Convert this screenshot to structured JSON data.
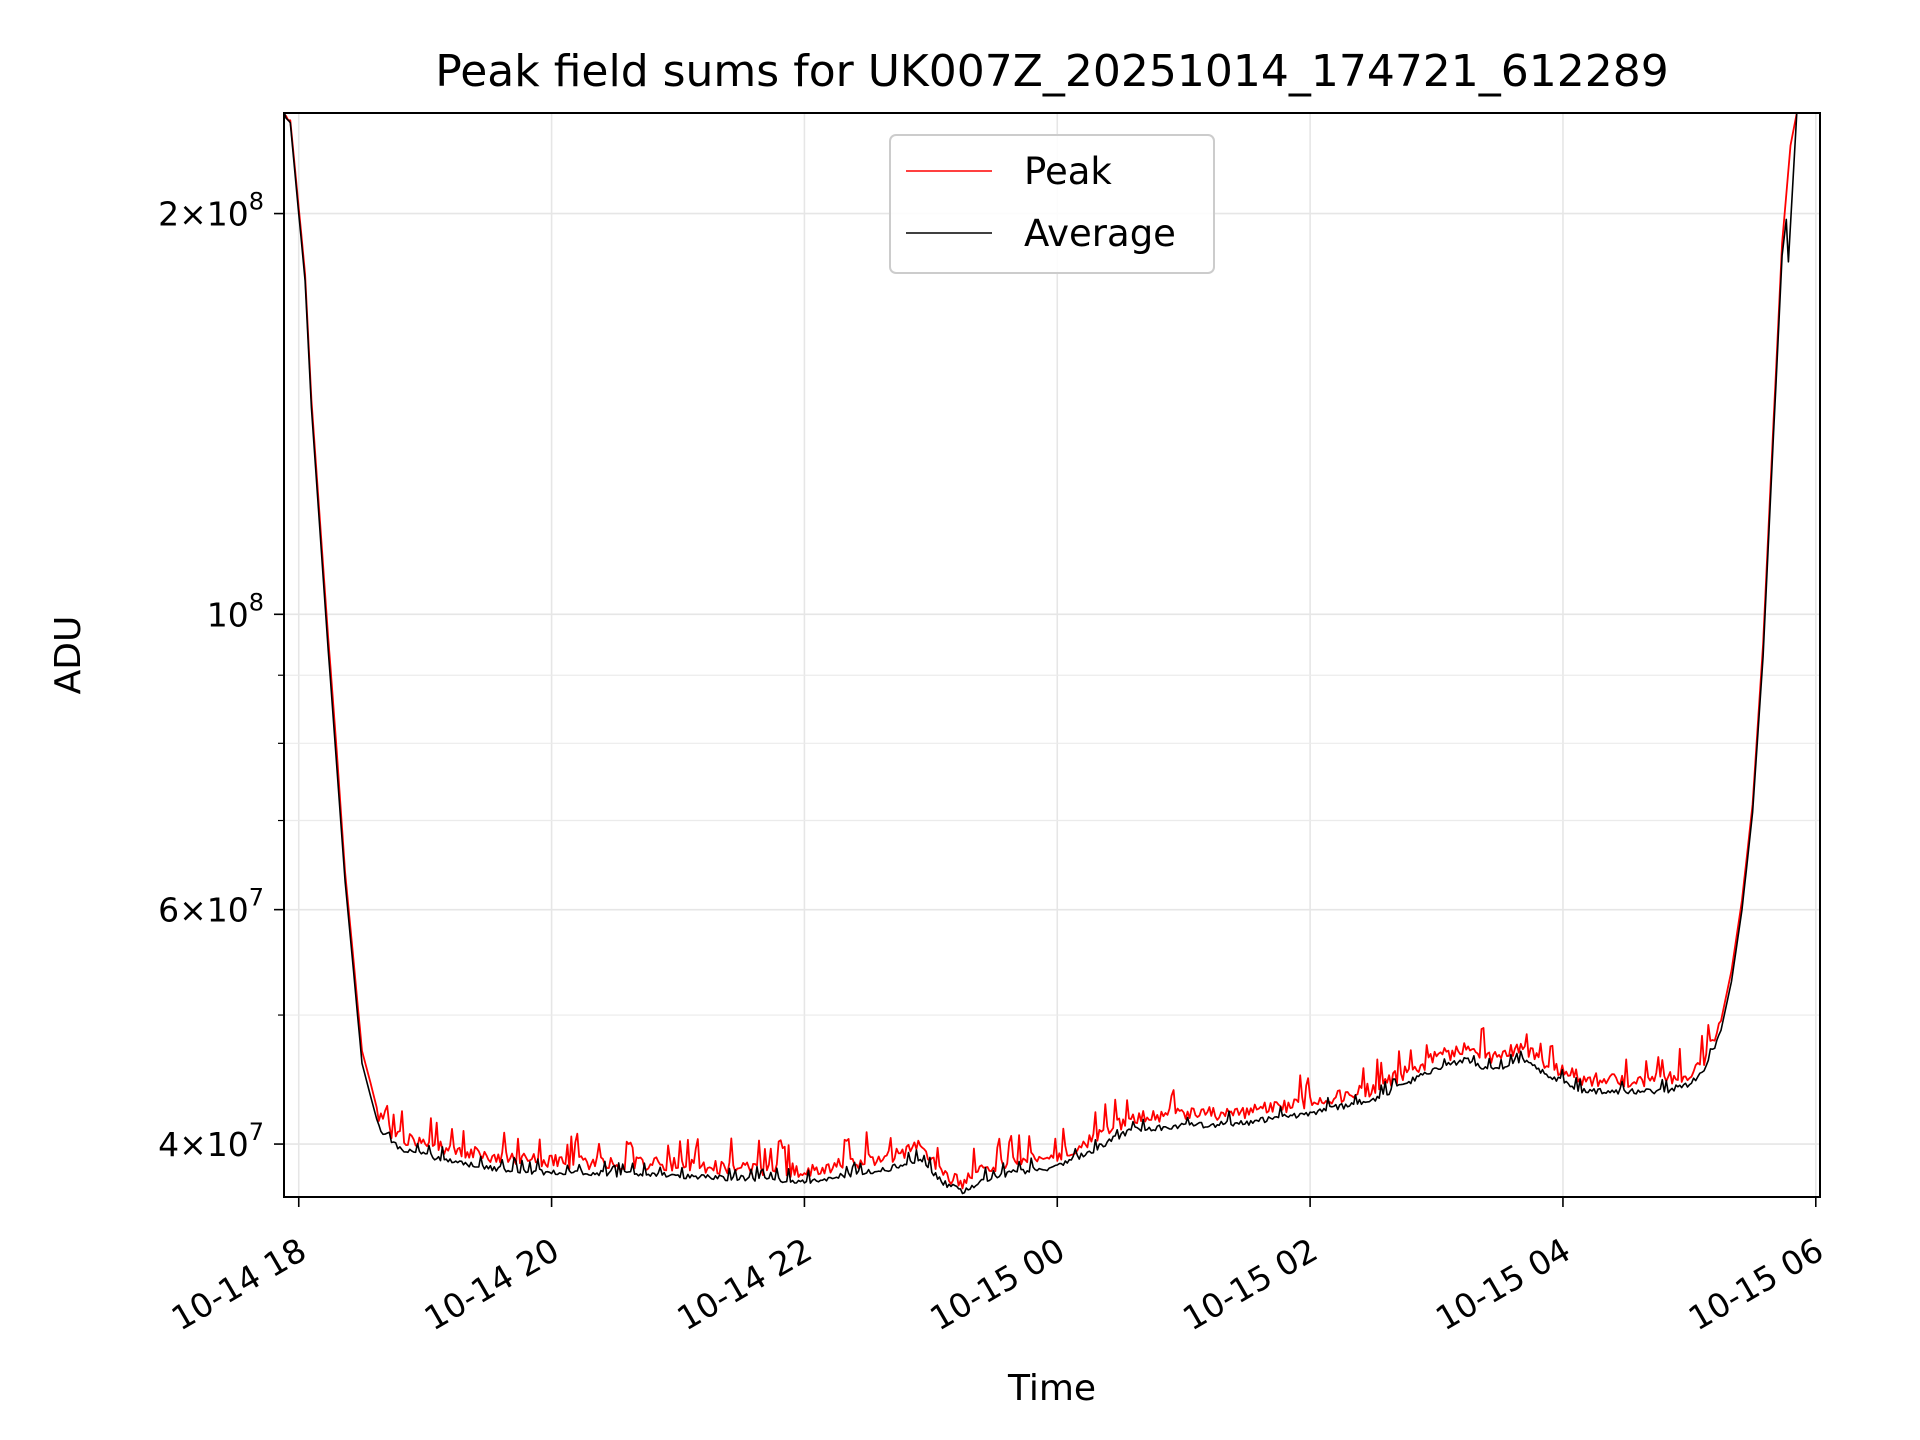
{
  "chart_data": {
    "type": "line",
    "title": "Peak field sums for UK007Z_20251014_174721_612289",
    "xlabel": "Time",
    "ylabel": "ADU",
    "xscale": "time",
    "yscale": "log",
    "xlim": [
      "2025-10-14 17:53",
      "2025-10-15 06:02"
    ],
    "ylim": [
      36500000,
      238000000
    ],
    "x_ticks": [
      {
        "value": "2025-10-14 18:00",
        "label": "10-14 18"
      },
      {
        "value": "2025-10-14 20:00",
        "label": "10-14 20"
      },
      {
        "value": "2025-10-14 22:00",
        "label": "10-14 22"
      },
      {
        "value": "2025-10-15 00:00",
        "label": "10-15 00"
      },
      {
        "value": "2025-10-15 02:00",
        "label": "10-15 02"
      },
      {
        "value": "2025-10-15 04:00",
        "label": "10-15 04"
      },
      {
        "value": "2025-10-15 06:00",
        "label": "10-15 06"
      }
    ],
    "y_major_ticks": [
      {
        "value": 40000000,
        "mantissa": "4",
        "exp": "7"
      },
      {
        "value": 60000000,
        "mantissa": "6",
        "exp": "7"
      },
      {
        "value": 100000000,
        "mantissa": "",
        "exp": "8"
      },
      {
        "value": 200000000,
        "mantissa": "2",
        "exp": "8"
      }
    ],
    "y_minor_ticks": [
      50000000,
      70000000,
      80000000,
      90000000
    ],
    "grid": true,
    "legend": "top-center",
    "series": [
      {
        "name": "Peak",
        "color": "#ff0000",
        "x": [
          "2025-10-14 17:53",
          "2025-10-14 17:56",
          "2025-10-14 17:59",
          "2025-10-14 18:03",
          "2025-10-14 18:06",
          "2025-10-14 18:10",
          "2025-10-14 18:14",
          "2025-10-14 18:18",
          "2025-10-14 18:22",
          "2025-10-14 18:26",
          "2025-10-14 18:30",
          "2025-10-14 18:34",
          "2025-10-14 18:38",
          "2025-10-14 18:42",
          "2025-10-14 18:50",
          "2025-10-14 19:00",
          "2025-10-14 19:10",
          "2025-10-14 19:20",
          "2025-10-14 19:30",
          "2025-10-14 19:45",
          "2025-10-14 20:00",
          "2025-10-14 20:30",
          "2025-10-14 21:00",
          "2025-10-14 21:30",
          "2025-10-14 22:00",
          "2025-10-14 22:20",
          "2025-10-14 22:40",
          "2025-10-14 22:55",
          "2025-10-14 23:05",
          "2025-10-14 23:15",
          "2025-10-14 23:25",
          "2025-10-14 23:40",
          "2025-10-15 00:00",
          "2025-10-15 00:20",
          "2025-10-15 00:35",
          "2025-10-15 01:00",
          "2025-10-15 01:30",
          "2025-10-15 02:00",
          "2025-10-15 02:30",
          "2025-10-15 03:00",
          "2025-10-15 03:15",
          "2025-10-15 03:25",
          "2025-10-15 03:40",
          "2025-10-15 03:55",
          "2025-10-15 04:10",
          "2025-10-15 04:30",
          "2025-10-15 04:50",
          "2025-10-15 05:00",
          "2025-10-15 05:08",
          "2025-10-15 05:15",
          "2025-10-15 05:20",
          "2025-10-15 05:25",
          "2025-10-15 05:30",
          "2025-10-15 05:35",
          "2025-10-15 05:40",
          "2025-10-15 05:44",
          "2025-10-15 05:48",
          "2025-10-15 05:51"
        ],
        "values": [
          238000000,
          235000000,
          210000000,
          180000000,
          145000000,
          118000000,
          96000000,
          79000000,
          64000000,
          55000000,
          47000000,
          44500000,
          42000000,
          41000000,
          40300000,
          40100000,
          39700000,
          39400000,
          39200000,
          39000000,
          38800000,
          38700000,
          38600000,
          38400000,
          38200000,
          38600000,
          39100000,
          39800000,
          38100000,
          37300000,
          38300000,
          38800000,
          39200000,
          40600000,
          41800000,
          42100000,
          42300000,
          43000000,
          44000000,
          46500000,
          47200000,
          46300000,
          47200000,
          45800000,
          44700000,
          44600000,
          44800000,
          45200000,
          46500000,
          49500000,
          54000000,
          61000000,
          72000000,
          95000000,
          140000000,
          190000000,
          225000000,
          238000000
        ]
      },
      {
        "name": "Average",
        "color": "#000000",
        "x": [
          "2025-10-14 17:53",
          "2025-10-14 17:56",
          "2025-10-14 17:59",
          "2025-10-14 18:03",
          "2025-10-14 18:06",
          "2025-10-14 18:10",
          "2025-10-14 18:14",
          "2025-10-14 18:18",
          "2025-10-14 18:22",
          "2025-10-14 18:26",
          "2025-10-14 18:30",
          "2025-10-14 18:34",
          "2025-10-14 18:38",
          "2025-10-14 18:42",
          "2025-10-14 18:50",
          "2025-10-14 19:00",
          "2025-10-14 19:10",
          "2025-10-14 19:20",
          "2025-10-14 19:30",
          "2025-10-14 19:45",
          "2025-10-14 20:00",
          "2025-10-14 20:30",
          "2025-10-14 21:00",
          "2025-10-14 21:30",
          "2025-10-14 22:00",
          "2025-10-14 22:20",
          "2025-10-14 22:40",
          "2025-10-14 22:55",
          "2025-10-14 23:05",
          "2025-10-14 23:15",
          "2025-10-14 23:25",
          "2025-10-14 23:40",
          "2025-10-15 00:00",
          "2025-10-15 00:20",
          "2025-10-15 00:35",
          "2025-10-15 01:00",
          "2025-10-15 01:30",
          "2025-10-15 02:00",
          "2025-10-15 02:30",
          "2025-10-15 03:00",
          "2025-10-15 03:15",
          "2025-10-15 03:25",
          "2025-10-15 03:40",
          "2025-10-15 03:55",
          "2025-10-15 04:10",
          "2025-10-15 04:30",
          "2025-10-15 04:50",
          "2025-10-15 05:00",
          "2025-10-15 05:08",
          "2025-10-15 05:15",
          "2025-10-15 05:20",
          "2025-10-15 05:25",
          "2025-10-15 05:30",
          "2025-10-15 05:35",
          "2025-10-15 05:40",
          "2025-10-15 05:44",
          "2025-10-15 05:46",
          "2025-10-15 05:47",
          "2025-10-15 05:51"
        ],
        "values": [
          238000000,
          234000000,
          208000000,
          178000000,
          143000000,
          116000000,
          94000000,
          77000000,
          63000000,
          54000000,
          46000000,
          43500000,
          41200000,
          40300000,
          39500000,
          39300000,
          38900000,
          38600000,
          38400000,
          38200000,
          38100000,
          38000000,
          37900000,
          37700000,
          37500000,
          37900000,
          38300000,
          39000000,
          37500000,
          36800000,
          37600000,
          38100000,
          38500000,
          39800000,
          41000000,
          41300000,
          41500000,
          42200000,
          43200000,
          45600000,
          46300000,
          45400000,
          46300000,
          44900000,
          43800000,
          43800000,
          43900000,
          44400000,
          45600000,
          48700000,
          53000000,
          60000000,
          71000000,
          93000000,
          137000000,
          186000000,
          198000000,
          184000000,
          238000000
        ]
      }
    ]
  }
}
